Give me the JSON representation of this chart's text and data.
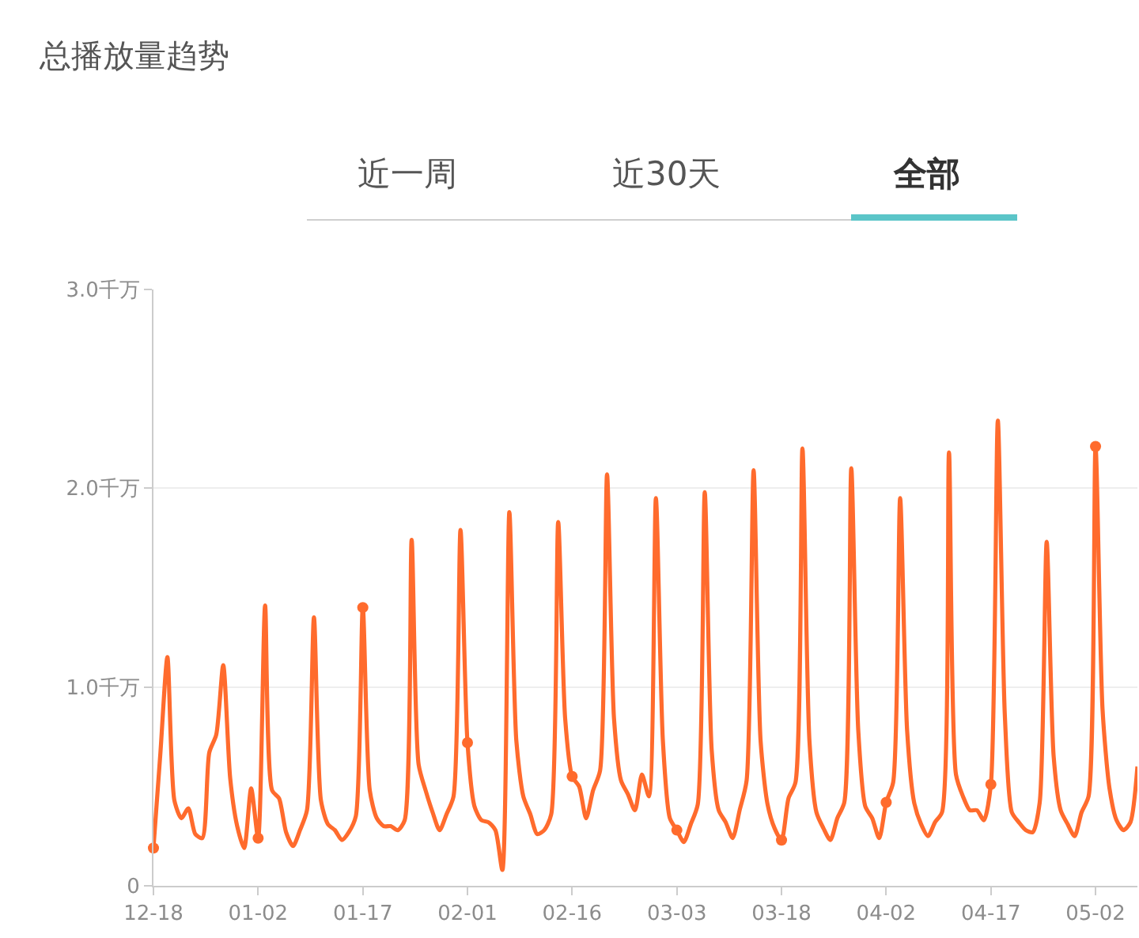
{
  "chart_data": {
    "type": "line",
    "title": "总播放量趋势",
    "annotations": [
      "近一周",
      "近30天",
      "全部"
    ],
    "categories": [
      "12-18",
      null,
      null,
      null,
      null,
      null,
      null,
      null,
      null,
      null,
      null,
      null,
      null,
      null,
      null,
      "01-02",
      null,
      null,
      null,
      null,
      null,
      null,
      null,
      null,
      null,
      null,
      null,
      null,
      null,
      null,
      "01-17",
      null,
      null,
      null,
      null,
      null,
      null,
      null,
      null,
      null,
      null,
      null,
      null,
      null,
      null,
      "02-01",
      null,
      null,
      null,
      null,
      null,
      null,
      null,
      null,
      null,
      null,
      null,
      null,
      null,
      null,
      "02-16",
      null,
      null,
      null,
      null,
      null,
      null,
      null,
      null,
      null,
      null,
      null,
      null,
      null,
      null,
      "03-03",
      null,
      null,
      null,
      null,
      null,
      null,
      null,
      null,
      null,
      null,
      null,
      null,
      null,
      null,
      "03-18",
      null,
      null,
      null,
      null,
      null,
      null,
      null,
      null,
      null,
      null,
      null,
      null,
      null,
      null,
      "04-02",
      null,
      null,
      null,
      null,
      null,
      null,
      null,
      null,
      null,
      null,
      null,
      null,
      null,
      null,
      "04-17",
      null,
      null,
      null,
      null,
      null,
      null,
      null,
      null,
      null,
      null,
      null,
      null,
      null,
      null,
      "05-02",
      null,
      null,
      null,
      null,
      null,
      null
    ],
    "series": [
      {
        "color": "#ff6b2d",
        "values": [
          0.19,
          0.67,
          1.15,
          0.43,
          0.34,
          0.39,
          0.26,
          0.24,
          0.67,
          0.76,
          1.11,
          0.54,
          0.3,
          0.19,
          0.49,
          0.24,
          1.41,
          0.48,
          0.44,
          0.27,
          0.2,
          0.28,
          0.38,
          1.35,
          0.43,
          0.31,
          0.28,
          0.23,
          0.27,
          0.35,
          1.4,
          0.48,
          0.34,
          0.3,
          0.3,
          0.28,
          0.33,
          1.74,
          0.61,
          0.48,
          0.37,
          0.28,
          0.36,
          0.45,
          1.79,
          0.72,
          0.4,
          0.33,
          0.32,
          0.28,
          0.08,
          1.88,
          0.73,
          0.45,
          0.36,
          0.26,
          0.28,
          0.36,
          1.83,
          0.84,
          0.55,
          0.5,
          0.34,
          0.48,
          0.58,
          2.07,
          0.84,
          0.53,
          0.46,
          0.38,
          0.56,
          0.45,
          1.95,
          0.73,
          0.34,
          0.28,
          0.22,
          0.31,
          0.41,
          1.98,
          0.68,
          0.38,
          0.32,
          0.24,
          0.38,
          0.53,
          2.09,
          0.73,
          0.41,
          0.29,
          0.23,
          0.44,
          0.52,
          2.2,
          0.73,
          0.37,
          0.29,
          0.23,
          0.34,
          0.42,
          2.1,
          0.78,
          0.4,
          0.34,
          0.24,
          0.42,
          0.52,
          1.95,
          0.78,
          0.42,
          0.31,
          0.25,
          0.32,
          0.37,
          2.18,
          0.56,
          0.45,
          0.38,
          0.38,
          0.33,
          0.51,
          2.34,
          0.86,
          0.37,
          0.32,
          0.28,
          0.27,
          0.42,
          1.73,
          0.65,
          0.38,
          0.31,
          0.25,
          0.37,
          0.45,
          2.21,
          0.89,
          0.49,
          0.33,
          0.28,
          0.32,
          0.6
        ]
      },
      {
        "type": "scatter",
        "marker": "circle",
        "color": "#ff6b2d",
        "values": [
          0.19,
          null,
          null,
          null,
          null,
          null,
          null,
          null,
          null,
          null,
          null,
          null,
          null,
          null,
          null,
          0.24,
          null,
          null,
          null,
          null,
          null,
          null,
          null,
          null,
          null,
          null,
          null,
          null,
          null,
          null,
          1.4,
          null,
          null,
          null,
          null,
          null,
          null,
          null,
          null,
          null,
          null,
          null,
          null,
          null,
          null,
          0.72,
          null,
          null,
          null,
          null,
          null,
          null,
          null,
          null,
          null,
          null,
          null,
          null,
          null,
          null,
          0.55,
          null,
          null,
          null,
          null,
          null,
          null,
          null,
          null,
          null,
          null,
          null,
          null,
          null,
          null,
          0.28,
          null,
          null,
          null,
          null,
          null,
          null,
          null,
          null,
          null,
          null,
          null,
          null,
          null,
          null,
          0.23,
          null,
          null,
          null,
          null,
          null,
          null,
          null,
          null,
          null,
          null,
          null,
          null,
          null,
          null,
          0.42,
          null,
          null,
          null,
          null,
          null,
          null,
          null,
          null,
          null,
          null,
          null,
          null,
          null,
          null,
          0.51,
          null,
          null,
          null,
          null,
          null,
          null,
          null,
          null,
          null,
          null,
          null,
          null,
          null,
          null,
          2.21,
          null,
          null,
          null,
          null,
          null,
          null
        ]
      }
    ],
    "ylim": [
      0,
      3
    ],
    "yticks": [
      {
        "value": 0,
        "label": "0"
      },
      {
        "value": 1,
        "label": "1.0千万"
      },
      {
        "value": 2,
        "label": "2.0千万"
      },
      {
        "value": 3,
        "label": "3.0千万"
      }
    ],
    "grid": "y",
    "line_style": "solid"
  }
}
